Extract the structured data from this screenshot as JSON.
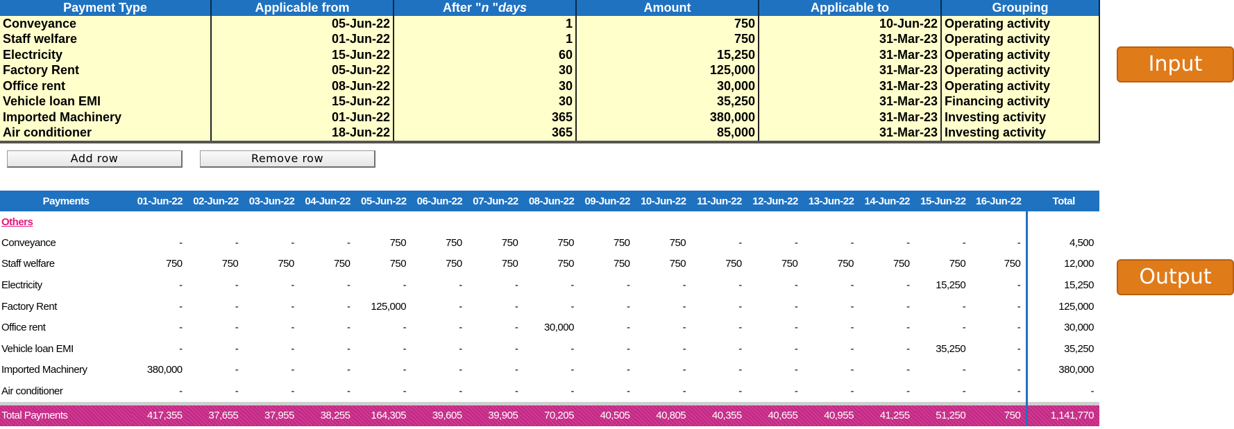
{
  "input": {
    "headers": [
      "Payment Type",
      "Applicable from",
      "After \"n \"days",
      "Amount",
      "Applicable to",
      "Grouping"
    ],
    "rows": [
      [
        "Conveyance",
        "05-Jun-22",
        "1",
        "750",
        "10-Jun-22",
        "Operating activity"
      ],
      [
        "Staff welfare",
        "01-Jun-22",
        "1",
        "750",
        "31-Mar-23",
        "Operating activity"
      ],
      [
        "Electricity",
        "15-Jun-22",
        "60",
        "15,250",
        "31-Mar-23",
        "Operating activity"
      ],
      [
        "Factory Rent",
        "05-Jun-22",
        "30",
        "125,000",
        "31-Mar-23",
        "Operating activity"
      ],
      [
        "Office rent",
        "08-Jun-22",
        "30",
        "30,000",
        "31-Mar-23",
        "Operating activity"
      ],
      [
        "Vehicle loan EMI",
        "15-Jun-22",
        "30",
        "35,250",
        "31-Mar-23",
        "Financing activity"
      ],
      [
        "Imported Machinery",
        "01-Jun-22",
        "365",
        "380,000",
        "31-Mar-23",
        "Investing activity"
      ],
      [
        "Air conditioner",
        "18-Jun-22",
        "365",
        "85,000",
        "31-Mar-23",
        "Investing activity"
      ]
    ]
  },
  "buttons": {
    "add_row": "Add row",
    "remove_row": "Remove row"
  },
  "output": {
    "headers": [
      "Payments",
      "01-Jun-22",
      "02-Jun-22",
      "03-Jun-22",
      "04-Jun-22",
      "05-Jun-22",
      "06-Jun-22",
      "07-Jun-22",
      "08-Jun-22",
      "09-Jun-22",
      "10-Jun-22",
      "11-Jun-22",
      "12-Jun-22",
      "13-Jun-22",
      "14-Jun-22",
      "15-Jun-22",
      "16-Jun-22",
      "Total"
    ],
    "section_label": "Others",
    "rows": [
      [
        "Conveyance",
        "-",
        "-",
        "-",
        "-",
        "750",
        "750",
        "750",
        "750",
        "750",
        "750",
        "-",
        "-",
        "-",
        "-",
        "-",
        "-",
        "4,500"
      ],
      [
        "Staff welfare",
        "750",
        "750",
        "750",
        "750",
        "750",
        "750",
        "750",
        "750",
        "750",
        "750",
        "750",
        "750",
        "750",
        "750",
        "750",
        "750",
        "12,000"
      ],
      [
        "Electricity",
        "-",
        "-",
        "-",
        "-",
        "-",
        "-",
        "-",
        "-",
        "-",
        "-",
        "-",
        "-",
        "-",
        "-",
        "15,250",
        "-",
        "15,250"
      ],
      [
        "Factory Rent",
        "-",
        "-",
        "-",
        "-",
        "125,000",
        "-",
        "-",
        "-",
        "-",
        "-",
        "-",
        "-",
        "-",
        "-",
        "-",
        "-",
        "125,000"
      ],
      [
        "Office rent",
        "-",
        "-",
        "-",
        "-",
        "-",
        "-",
        "-",
        "30,000",
        "-",
        "-",
        "-",
        "-",
        "-",
        "-",
        "-",
        "-",
        "30,000"
      ],
      [
        "Vehicle loan EMI",
        "-",
        "-",
        "-",
        "-",
        "-",
        "-",
        "-",
        "-",
        "-",
        "-",
        "-",
        "-",
        "-",
        "-",
        "35,250",
        "-",
        "35,250"
      ],
      [
        "Imported Machinery",
        "380,000",
        "-",
        "-",
        "-",
        "-",
        "-",
        "-",
        "-",
        "-",
        "-",
        "-",
        "-",
        "-",
        "-",
        "-",
        "-",
        "380,000"
      ],
      [
        "Air conditioner",
        "-",
        "-",
        "-",
        "-",
        "-",
        "-",
        "-",
        "-",
        "-",
        "-",
        "-",
        "-",
        "-",
        "-",
        "-",
        "-",
        "-"
      ]
    ],
    "total_row": [
      "Total Payments",
      "417,355",
      "37,655",
      "37,955",
      "38,255",
      "164,305",
      "39,605",
      "39,905",
      "70,205",
      "40,505",
      "40,805",
      "40,355",
      "40,655",
      "40,955",
      "41,255",
      "51,250",
      "750",
      "1,141,770"
    ]
  },
  "labels": {
    "input": "Input",
    "output": "Output"
  },
  "colors": {
    "header_blue": "#1f72c0",
    "input_fill": "#ffffcc",
    "total_magenta": "#cc2a8a",
    "others_pink": "#e3197e",
    "tag_orange": "#e07b1a"
  }
}
